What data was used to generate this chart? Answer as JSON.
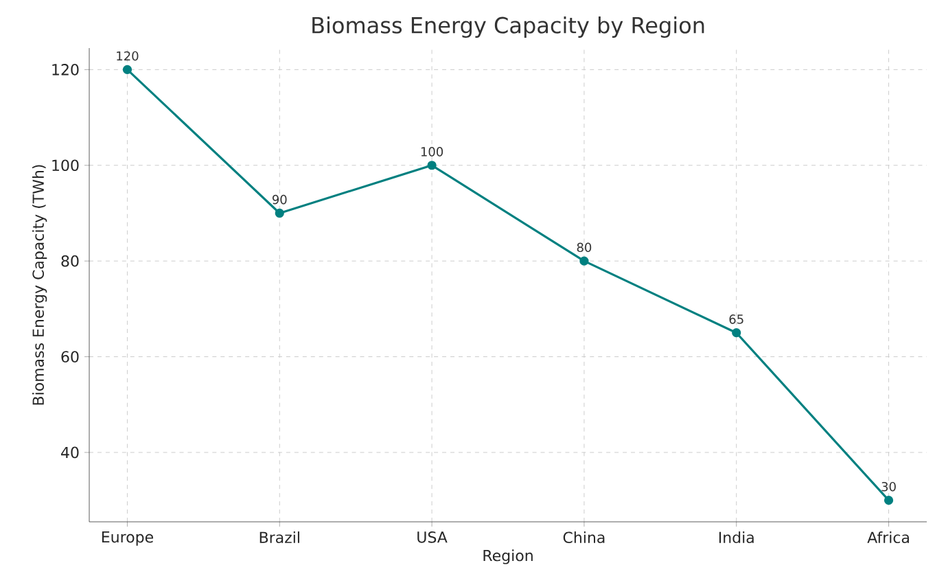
{
  "chart_data": {
    "type": "line",
    "title": "Biomass Energy Capacity by Region",
    "xlabel": "Region",
    "ylabel": "Biomass Energy Capacity (TWh)",
    "categories": [
      "Europe",
      "Brazil",
      "USA",
      "China",
      "India",
      "Africa"
    ],
    "values": [
      120,
      90,
      100,
      80,
      65,
      30
    ],
    "color": "#008080",
    "marker": "circle",
    "ylim": [
      25.5,
      124.5
    ],
    "yticks": [
      40,
      60,
      80,
      100,
      120
    ],
    "grid": true,
    "data_labels": true
  }
}
